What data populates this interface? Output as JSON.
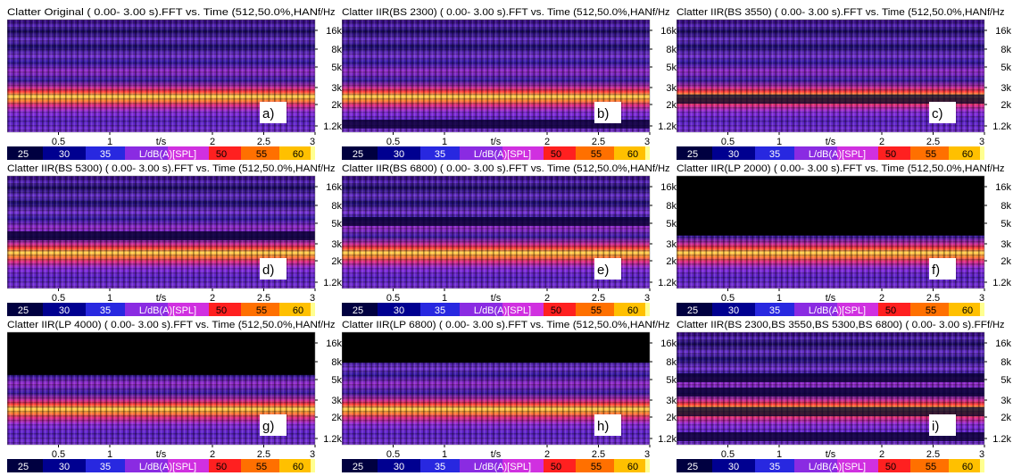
{
  "panels": [
    {
      "title": "Clatter Original ( 0.00- 3.00 s).FFT vs. Time (512,50.0%,HAN",
      "label": "a)"
    },
    {
      "title": "Clatter IIR(BS 2300) ( 0.00- 3.00 s).FFT vs. Time (512,50.0%,HAN",
      "label": "b)"
    },
    {
      "title": "Clatter IIR(BS 3550) ( 0.00- 3.00 s).FFT vs. Time (512,50.0%,HAN",
      "label": "c)"
    },
    {
      "title": "Clatter IIR(BS 5300) ( 0.00- 3.00 s).FFT vs. Time (512,50.0%,HAN",
      "label": "d)"
    },
    {
      "title": "Clatter IIR(BS 6800) ( 0.00- 3.00 s).FFT vs. Time (512,50.0%,HAN",
      "label": "e)"
    },
    {
      "title": "Clatter IIR(LP 2000) ( 0.00- 3.00 s).FFT vs. Time (512,50.0%,HAN",
      "label": "f)"
    },
    {
      "title": "Clatter IIR(LP 4000) ( 0.00- 3.00 s).FFT vs. Time (512,50.0%,HAN",
      "label": "g)"
    },
    {
      "title": "Clatter IIR(LP 6800) ( 0.00- 3.00 s).FFT vs. Time (512,50.0%,HAN",
      "label": "h)"
    },
    {
      "title": "Clatter IIR(BS 2300,BS 3550,BS 5300,BS 6800) ( 0.00- 3.00 s).FF",
      "label": "i)"
    }
  ],
  "frequency_axis": {
    "label": "f/Hz",
    "ticks": [
      "16k",
      "8k",
      "5k",
      "3k",
      "2k",
      "1.2k"
    ]
  },
  "time_axis": {
    "label": "t/s",
    "ticks": [
      "0.5",
      "1",
      "2",
      "2.5",
      "3"
    ]
  },
  "color_scale": {
    "label": "L/dB(A)[SPL]",
    "ticks": [
      "25",
      "30",
      "35",
      "50",
      "55",
      "60"
    ]
  }
}
